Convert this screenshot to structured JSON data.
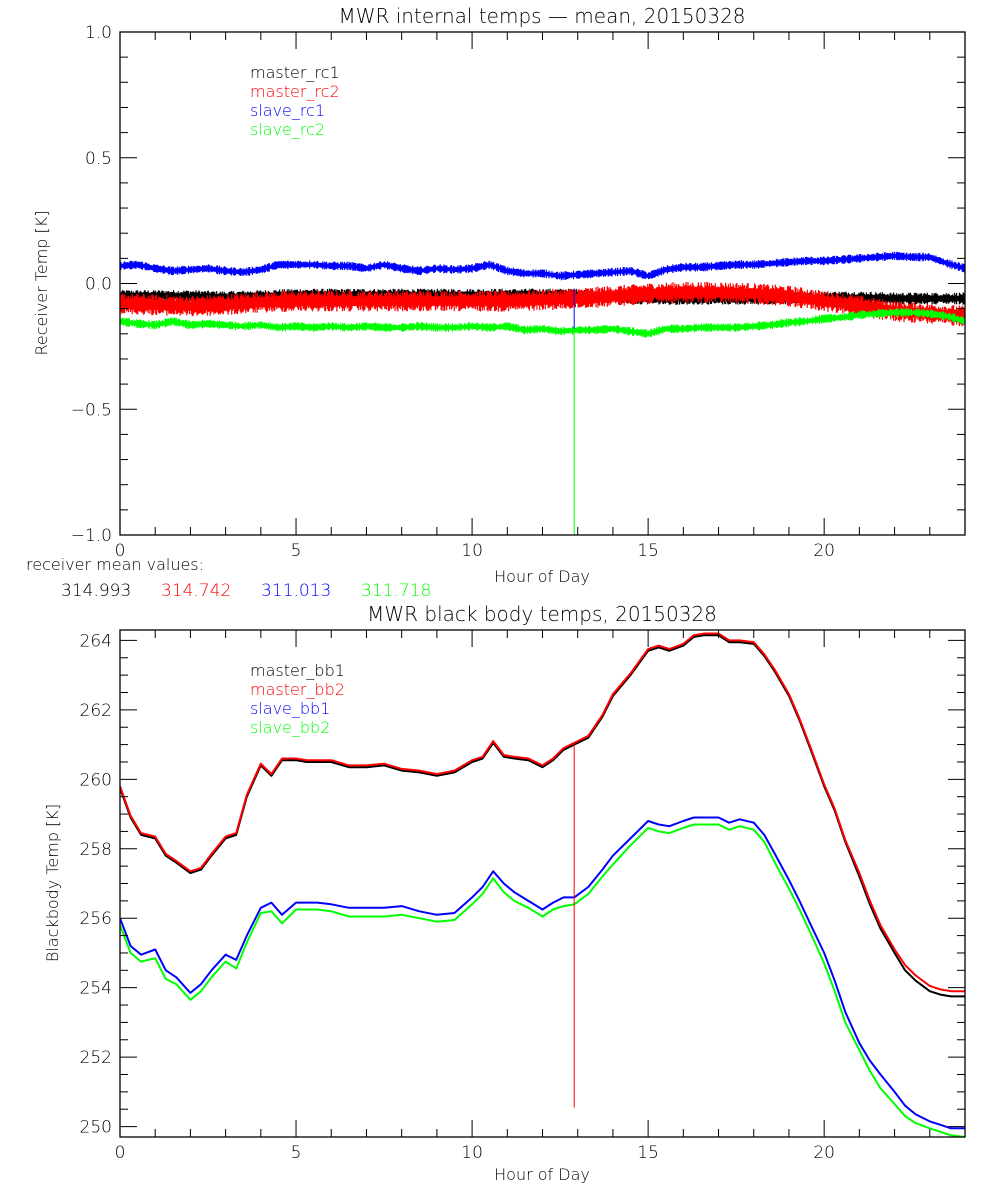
{
  "chart_data": [
    {
      "type": "line",
      "title": "MWR internal temps — mean, 20150328",
      "xlabel": "Hour of Day",
      "ylabel": "Receiver Temp [K]",
      "xlim": [
        0,
        24
      ],
      "ylim": [
        -1.0,
        1.0
      ],
      "xticks": [
        0,
        5,
        10,
        15,
        20
      ],
      "xtick_labels": [
        "0",
        "5",
        "10",
        "15",
        "20"
      ],
      "xminor_step": 1,
      "yticks": [
        -1.0,
        -0.5,
        0.0,
        0.5,
        1.0
      ],
      "ytick_labels": [
        "−1.0",
        "−0.5",
        "0.0",
        "0.5",
        "1.0"
      ],
      "yminor_step": 0.1,
      "grid": false,
      "legend_position": "top-left",
      "noise_band": true,
      "series": [
        {
          "name": "master_rc1",
          "color": "#000000",
          "band": 0.035,
          "x": [
            0,
            1,
            2,
            3,
            4,
            5,
            6,
            7,
            8,
            9,
            10,
            11,
            12,
            13,
            14,
            15,
            16,
            17,
            18,
            19,
            20,
            21,
            22,
            23,
            24
          ],
          "y": [
            -0.05,
            -0.05,
            -0.05,
            -0.055,
            -0.05,
            -0.045,
            -0.045,
            -0.045,
            -0.045,
            -0.045,
            -0.045,
            -0.045,
            -0.045,
            -0.045,
            -0.055,
            -0.06,
            -0.06,
            -0.06,
            -0.06,
            -0.06,
            -0.055,
            -0.055,
            -0.06,
            -0.06,
            -0.06
          ]
        },
        {
          "name": "master_rc2",
          "color": "#ff0000",
          "band": 0.06,
          "x": [
            0,
            1,
            2,
            3,
            4,
            5,
            6,
            7,
            8,
            9,
            10,
            11,
            12,
            13,
            14,
            15,
            16,
            17,
            18,
            19,
            20,
            21,
            22,
            23,
            24
          ],
          "y": [
            -0.08,
            -0.085,
            -0.09,
            -0.085,
            -0.075,
            -0.07,
            -0.07,
            -0.07,
            -0.07,
            -0.07,
            -0.07,
            -0.07,
            -0.065,
            -0.06,
            -0.05,
            -0.04,
            -0.035,
            -0.035,
            -0.04,
            -0.05,
            -0.07,
            -0.09,
            -0.11,
            -0.12,
            -0.13
          ]
        },
        {
          "name": "slave_rc1",
          "color": "#0000ff",
          "band": 0.025,
          "x": [
            0,
            0.5,
            1,
            1.5,
            2,
            2.5,
            3,
            3.5,
            4,
            4.5,
            5,
            5.5,
            6,
            6.5,
            7,
            7.5,
            8,
            8.5,
            9,
            9.5,
            10,
            10.5,
            11,
            11.5,
            12,
            12.5,
            13,
            13.5,
            14,
            14.5,
            15,
            15.5,
            16,
            16.5,
            17,
            17.5,
            18,
            18.5,
            19,
            19.5,
            20,
            20.5,
            21,
            21.5,
            22,
            22.5,
            23,
            23.5,
            24
          ],
          "y": [
            0.07,
            0.075,
            0.06,
            0.05,
            0.055,
            0.06,
            0.05,
            0.045,
            0.055,
            0.075,
            0.075,
            0.075,
            0.07,
            0.07,
            0.06,
            0.075,
            0.06,
            0.05,
            0.06,
            0.055,
            0.06,
            0.075,
            0.05,
            0.04,
            0.04,
            0.03,
            0.035,
            0.04,
            0.045,
            0.05,
            0.03,
            0.055,
            0.065,
            0.065,
            0.07,
            0.075,
            0.075,
            0.08,
            0.085,
            0.09,
            0.09,
            0.095,
            0.1,
            0.105,
            0.11,
            0.105,
            0.105,
            0.08,
            0.06
          ]
        },
        {
          "name": "slave_rc2",
          "color": "#00ff00",
          "band": 0.025,
          "x": [
            0,
            0.5,
            1,
            1.5,
            2,
            2.5,
            3,
            3.5,
            4,
            4.5,
            5,
            5.5,
            6,
            6.5,
            7,
            7.5,
            8,
            8.5,
            9,
            9.5,
            10,
            10.5,
            11,
            11.5,
            12,
            12.5,
            13,
            13.5,
            14,
            14.5,
            15,
            15.5,
            16,
            16.5,
            17,
            17.5,
            18,
            18.5,
            19,
            19.5,
            20,
            20.5,
            21,
            21.5,
            22,
            22.5,
            23,
            23.5,
            24
          ],
          "y": [
            -0.15,
            -0.16,
            -0.165,
            -0.15,
            -0.165,
            -0.16,
            -0.165,
            -0.17,
            -0.165,
            -0.175,
            -0.17,
            -0.175,
            -0.17,
            -0.175,
            -0.17,
            -0.175,
            -0.175,
            -0.17,
            -0.175,
            -0.175,
            -0.17,
            -0.175,
            -0.17,
            -0.185,
            -0.18,
            -0.19,
            -0.185,
            -0.185,
            -0.18,
            -0.19,
            -0.2,
            -0.18,
            -0.18,
            -0.175,
            -0.175,
            -0.175,
            -0.17,
            -0.165,
            -0.155,
            -0.15,
            -0.14,
            -0.135,
            -0.125,
            -0.12,
            -0.115,
            -0.115,
            -0.12,
            -0.13,
            -0.15
          ]
        }
      ],
      "annotations": [
        {
          "type": "vline",
          "x": 12.9,
          "y_from": -1.0,
          "y_to": -0.02,
          "color_upper": "#0000ff",
          "color_lower": "#00ff00",
          "split_at": -0.18
        }
      ]
    },
    {
      "type": "line",
      "title": "MWR black body temps, 20150328",
      "xlabel": "Hour of Day",
      "ylabel": "Blackbody Temp [K]",
      "xlim": [
        0,
        24
      ],
      "ylim": [
        249.7,
        264.3
      ],
      "xticks": [
        0,
        5,
        10,
        15,
        20
      ],
      "xtick_labels": [
        "0",
        "5",
        "10",
        "15",
        "20"
      ],
      "xminor_step": 1,
      "yticks": [
        250,
        252,
        254,
        256,
        258,
        260,
        262,
        264
      ],
      "ytick_labels": [
        "250",
        "252",
        "254",
        "256",
        "258",
        "260",
        "262",
        "264"
      ],
      "yminor_step": 0.5,
      "grid": false,
      "legend_position": "top-left",
      "series": [
        {
          "name": "master_bb1",
          "color": "#000000",
          "x": [
            0,
            0.3,
            0.6,
            1,
            1.3,
            1.6,
            2,
            2.3,
            2.6,
            3,
            3.3,
            3.6,
            4,
            4.3,
            4.6,
            5,
            5.3,
            5.6,
            6,
            6.5,
            7,
            7.5,
            8,
            8.5,
            9,
            9.5,
            10,
            10.3,
            10.6,
            10.9,
            11.2,
            11.6,
            12,
            12.3,
            12.6,
            12.9,
            13.3,
            13.7,
            14,
            14.5,
            15,
            15.3,
            15.6,
            16,
            16.3,
            16.6,
            17,
            17.3,
            17.6,
            18,
            18.3,
            18.6,
            19,
            19.3,
            19.6,
            20,
            20.3,
            20.6,
            21,
            21.3,
            21.6,
            22,
            22.3,
            22.6,
            23,
            23.3,
            23.6,
            24
          ],
          "y": [
            259.75,
            258.9,
            258.4,
            258.3,
            257.8,
            257.6,
            257.3,
            257.4,
            257.8,
            258.3,
            258.4,
            259.5,
            260.4,
            260.1,
            260.55,
            260.55,
            260.5,
            260.5,
            260.5,
            260.35,
            260.35,
            260.4,
            260.25,
            260.2,
            260.1,
            260.2,
            260.5,
            260.6,
            261.05,
            260.65,
            260.6,
            260.55,
            260.35,
            260.55,
            260.85,
            261.0,
            261.2,
            261.8,
            262.4,
            263.0,
            263.7,
            263.8,
            263.7,
            263.85,
            264.1,
            264.15,
            264.15,
            263.95,
            263.95,
            263.9,
            263.55,
            263.1,
            262.4,
            261.7,
            260.9,
            259.8,
            259.1,
            258.2,
            257.2,
            256.4,
            255.7,
            255.0,
            254.5,
            254.2,
            253.9,
            253.8,
            253.75,
            253.75
          ]
        },
        {
          "name": "master_bb2",
          "color": "#ff0000",
          "x": [
            0,
            0.3,
            0.6,
            1,
            1.3,
            1.6,
            2,
            2.3,
            2.6,
            3,
            3.3,
            3.6,
            4,
            4.3,
            4.6,
            5,
            5.3,
            5.6,
            6,
            6.5,
            7,
            7.5,
            8,
            8.5,
            9,
            9.5,
            10,
            10.3,
            10.6,
            10.9,
            11.2,
            11.6,
            12,
            12.3,
            12.6,
            12.9,
            13.3,
            13.7,
            14,
            14.5,
            15,
            15.3,
            15.6,
            16,
            16.3,
            16.6,
            17,
            17.3,
            17.6,
            18,
            18.3,
            18.6,
            19,
            19.3,
            19.6,
            20,
            20.3,
            20.6,
            21,
            21.3,
            21.6,
            22,
            22.3,
            22.6,
            23,
            23.3,
            23.6,
            24
          ],
          "y": [
            259.8,
            258.95,
            258.45,
            258.35,
            257.85,
            257.65,
            257.35,
            257.45,
            257.85,
            258.35,
            258.45,
            259.55,
            260.45,
            260.15,
            260.6,
            260.6,
            260.55,
            260.55,
            260.55,
            260.4,
            260.4,
            260.45,
            260.3,
            260.25,
            260.15,
            260.25,
            260.55,
            260.65,
            261.1,
            260.7,
            260.65,
            260.6,
            260.4,
            260.6,
            260.9,
            261.05,
            261.25,
            261.85,
            262.45,
            263.05,
            263.75,
            263.85,
            263.75,
            263.9,
            264.15,
            264.2,
            264.2,
            264.0,
            264.0,
            263.95,
            263.6,
            263.15,
            262.45,
            261.75,
            260.95,
            259.85,
            259.15,
            258.25,
            257.3,
            256.5,
            255.8,
            255.1,
            254.65,
            254.35,
            254.05,
            253.95,
            253.9,
            253.9
          ]
        },
        {
          "name": "slave_bb1",
          "color": "#0000ff",
          "x": [
            0,
            0.3,
            0.6,
            1,
            1.3,
            1.6,
            2,
            2.3,
            2.6,
            3,
            3.3,
            3.6,
            4,
            4.3,
            4.6,
            5,
            5.3,
            5.6,
            6,
            6.5,
            7,
            7.5,
            8,
            8.5,
            9,
            9.5,
            10,
            10.3,
            10.6,
            10.9,
            11.2,
            11.6,
            12,
            12.3,
            12.6,
            12.9,
            13.3,
            13.7,
            14,
            14.5,
            15,
            15.3,
            15.6,
            16,
            16.3,
            16.6,
            17,
            17.3,
            17.6,
            18,
            18.3,
            18.6,
            19,
            19.3,
            19.6,
            20,
            20.3,
            20.6,
            21,
            21.3,
            21.6,
            22,
            22.3,
            22.6,
            23,
            23.3,
            23.6,
            24
          ],
          "y": [
            256.0,
            255.2,
            254.95,
            255.1,
            254.5,
            254.3,
            253.85,
            254.1,
            254.5,
            254.95,
            254.8,
            255.5,
            256.3,
            256.45,
            256.1,
            256.45,
            256.45,
            256.45,
            256.4,
            256.3,
            256.3,
            256.3,
            256.35,
            256.2,
            256.1,
            256.15,
            256.6,
            256.9,
            257.35,
            257.0,
            256.75,
            256.5,
            256.25,
            256.45,
            256.6,
            256.6,
            256.9,
            257.4,
            257.8,
            258.3,
            258.8,
            258.7,
            258.65,
            258.8,
            258.9,
            258.9,
            258.9,
            258.75,
            258.85,
            258.75,
            258.4,
            257.85,
            257.1,
            256.5,
            255.85,
            255.0,
            254.2,
            253.3,
            252.4,
            251.9,
            251.5,
            251.0,
            250.6,
            250.35,
            250.15,
            250.05,
            249.95,
            249.95
          ]
        },
        {
          "name": "slave_bb2",
          "color": "#00ff00",
          "x": [
            0,
            0.3,
            0.6,
            1,
            1.3,
            1.6,
            2,
            2.3,
            2.6,
            3,
            3.3,
            3.6,
            4,
            4.3,
            4.6,
            5,
            5.3,
            5.6,
            6,
            6.5,
            7,
            7.5,
            8,
            8.5,
            9,
            9.5,
            10,
            10.3,
            10.6,
            10.9,
            11.2,
            11.6,
            12,
            12.3,
            12.6,
            12.9,
            13.3,
            13.7,
            14,
            14.5,
            15,
            15.3,
            15.6,
            16,
            16.3,
            16.6,
            17,
            17.3,
            17.6,
            18,
            18.3,
            18.6,
            19,
            19.3,
            19.6,
            20,
            20.3,
            20.6,
            21,
            21.3,
            21.6,
            22,
            22.3,
            22.6,
            23,
            23.3,
            23.6,
            24
          ],
          "y": [
            255.8,
            255.0,
            254.75,
            254.85,
            254.25,
            254.1,
            253.65,
            253.9,
            254.3,
            254.75,
            254.55,
            255.3,
            256.15,
            256.2,
            255.85,
            256.25,
            256.25,
            256.25,
            256.2,
            256.05,
            256.05,
            256.05,
            256.1,
            256.0,
            255.9,
            255.95,
            256.4,
            256.7,
            257.15,
            256.75,
            256.5,
            256.3,
            256.05,
            256.25,
            256.35,
            256.4,
            256.7,
            257.2,
            257.55,
            258.1,
            258.6,
            258.5,
            258.45,
            258.6,
            258.7,
            258.7,
            258.7,
            258.55,
            258.65,
            258.55,
            258.2,
            257.6,
            256.85,
            256.25,
            255.6,
            254.7,
            253.9,
            253.0,
            252.2,
            251.6,
            251.1,
            250.65,
            250.3,
            250.1,
            249.95,
            249.85,
            249.75,
            249.7
          ]
        }
      ],
      "annotations": [
        {
          "type": "vline",
          "x": 12.9,
          "y_from": 250.55,
          "y_to": 261.05,
          "color": "#ff0000"
        }
      ]
    }
  ],
  "receiver_mean": {
    "label": "receiver mean values:",
    "values": [
      {
        "text": "314.993",
        "color": "#000000"
      },
      {
        "text": "314.742",
        "color": "#ff0000"
      },
      {
        "text": "311.013",
        "color": "#0000ff"
      },
      {
        "text": "311.718",
        "color": "#00ff00"
      }
    ]
  }
}
